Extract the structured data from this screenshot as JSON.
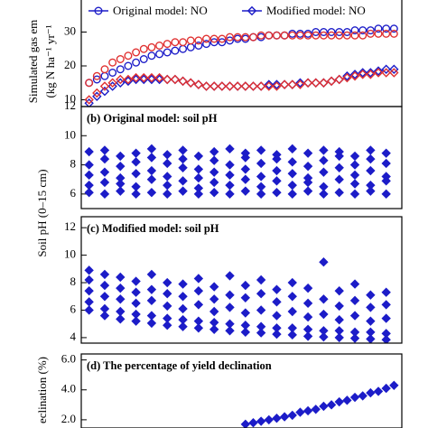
{
  "chart_data": [
    {
      "type": "scatter",
      "ylabel": [
        "Simulated gas em",
        "(kg N ha⁻¹ yr⁻¹"
      ],
      "ylim": [
        8,
        40
      ],
      "yticks": [
        10,
        20,
        30
      ],
      "series": [
        {
          "name": "Original model: NO",
          "color": "#1c1cc8",
          "marker": "circle",
          "filled": false,
          "x": [
            1,
            2,
            3,
            4,
            5,
            6,
            7,
            8,
            9,
            10,
            11,
            12,
            13,
            14,
            15,
            16,
            17,
            18,
            19,
            20,
            21,
            22,
            23,
            24,
            25,
            26,
            27,
            28,
            29,
            30,
            31,
            32,
            33,
            34,
            35,
            36,
            37,
            38,
            39,
            40
          ],
          "values": [
            15,
            16,
            17,
            18,
            19,
            20,
            21,
            22,
            23,
            23.5,
            24,
            24.5,
            25,
            25.5,
            26,
            26.5,
            27,
            27,
            27.5,
            28,
            28,
            28.5,
            28.5,
            29,
            29,
            29,
            29.5,
            29.5,
            29.5,
            30,
            30,
            30,
            30,
            30,
            30.5,
            30.5,
            30.5,
            31,
            31,
            31
          ]
        },
        {
          "color": "#e03030",
          "marker": "circle",
          "filled": false,
          "x": [
            1,
            2,
            3,
            4,
            5,
            6,
            7,
            8,
            9,
            10,
            11,
            12,
            13,
            14,
            15,
            16,
            17,
            18,
            19,
            20,
            21,
            22,
            23,
            24,
            25,
            26,
            27,
            28,
            29,
            30,
            31,
            32,
            33,
            34,
            35,
            36,
            37,
            38,
            39,
            40
          ],
          "values": [
            15,
            17,
            19,
            21,
            22,
            23,
            24,
            25,
            25.5,
            26,
            26.5,
            27,
            27,
            27.5,
            27.5,
            28,
            28,
            28,
            28.5,
            28.5,
            28.5,
            28.5,
            29,
            29,
            29,
            29,
            29,
            29,
            29,
            29,
            29,
            29,
            29,
            29,
            29,
            29,
            29.5,
            29.5,
            29.5,
            29.5
          ]
        },
        {
          "name": "Modified model: NO",
          "color": "#1c1cc8",
          "marker": "diamond",
          "filled": false,
          "x": [
            1,
            2,
            3,
            4,
            5,
            6,
            7,
            8,
            9,
            10,
            11,
            12,
            13,
            14,
            15,
            16,
            17,
            18,
            19,
            20,
            21,
            22,
            23,
            24,
            25,
            26,
            27,
            28,
            29,
            30,
            31,
            32,
            33,
            34,
            35,
            36,
            37,
            38,
            39,
            40
          ],
          "values": [
            9,
            11,
            12.5,
            14,
            15,
            15.5,
            16,
            16,
            16,
            16,
            16,
            16,
            15.5,
            15,
            14.5,
            14,
            14,
            14,
            14,
            14,
            14,
            14,
            14,
            14.5,
            14.5,
            14.5,
            14.5,
            15,
            15,
            15,
            15,
            15.5,
            16,
            17,
            17.5,
            18,
            18,
            18.5,
            19,
            19
          ]
        },
        {
          "color": "#e03030",
          "marker": "diamond",
          "filled": false,
          "x": [
            1,
            2,
            3,
            4,
            5,
            6,
            7,
            8,
            9,
            10,
            11,
            12,
            13,
            14,
            15,
            16,
            17,
            18,
            19,
            20,
            21,
            22,
            23,
            24,
            25,
            26,
            27,
            28,
            29,
            30,
            31,
            32,
            33,
            34,
            35,
            36,
            37,
            38,
            39,
            40
          ],
          "values": [
            10,
            12,
            14,
            15,
            16,
            16,
            16.5,
            16.5,
            16.5,
            16.5,
            16,
            16,
            15.5,
            15,
            14.5,
            14,
            14,
            14,
            14,
            14,
            14,
            14,
            14,
            14,
            14,
            14.5,
            14.5,
            14.5,
            15,
            15,
            15,
            15.5,
            16,
            16.5,
            17,
            17.5,
            17.5,
            18,
            18,
            18
          ]
        }
      ]
    },
    {
      "type": "scatter",
      "title": "(b) Original model: soil pH",
      "ylabel": [
        "Soil pH (0–15 cm)"
      ],
      "ylim": [
        5,
        12
      ],
      "yticks": [
        6,
        8,
        10,
        12
      ],
      "series": [
        {
          "color": "#1c1cc8",
          "marker": "diamond",
          "filled": true,
          "x": [
            1,
            1,
            1,
            1,
            1,
            3,
            3,
            3,
            3,
            3,
            5,
            5,
            5,
            5,
            5,
            7,
            7,
            7,
            7,
            7,
            9,
            9,
            9,
            9,
            9,
            11,
            11,
            11,
            11,
            11,
            13,
            13,
            13,
            13,
            13,
            15,
            15,
            15,
            15,
            15,
            17,
            17,
            17,
            17,
            17,
            19,
            19,
            19,
            19,
            19,
            21,
            21,
            21,
            21,
            21,
            23,
            23,
            23,
            23,
            23,
            25,
            25,
            25,
            25,
            25,
            27,
            27,
            27,
            27,
            27,
            29,
            29,
            29,
            29,
            29,
            31,
            31,
            31,
            31,
            31,
            33,
            33,
            33,
            33,
            33,
            35,
            35,
            35,
            35,
            35,
            37,
            37,
            37,
            37,
            37,
            39,
            39,
            39,
            39,
            39
          ],
          "values": [
            6.1,
            6.6,
            7.3,
            8.0,
            8.9,
            6.0,
            6.8,
            7.5,
            8.4,
            9.0,
            6.2,
            6.7,
            7.1,
            7.9,
            8.6,
            6.0,
            6.5,
            7.4,
            8.2,
            8.8,
            6.1,
            7.0,
            7.6,
            8.5,
            9.1,
            6.0,
            6.6,
            7.2,
            8.1,
            8.7,
            6.2,
            6.9,
            7.8,
            8.4,
            9.0,
            6.0,
            6.4,
            7.1,
            7.7,
            8.6,
            6.1,
            6.8,
            7.5,
            8.3,
            8.9,
            6.0,
            6.6,
            7.3,
            8.0,
            9.1,
            6.2,
            7.0,
            7.7,
            8.5,
            8.8,
            6.0,
            6.5,
            7.2,
            8.1,
            9.0,
            6.1,
            6.9,
            7.6,
            8.4,
            8.7,
            6.0,
            6.6,
            7.4,
            8.2,
            9.1,
            6.2,
            6.8,
            7.1,
            7.9,
            8.8,
            6.0,
            6.5,
            7.5,
            8.3,
            9.0,
            6.1,
            7.0,
            7.8,
            8.6,
            8.9,
            6.0,
            6.7,
            7.3,
            8.0,
            8.6,
            6.2,
            6.6,
            7.6,
            8.4,
            9.0,
            6.0,
            6.9,
            7.2,
            8.1,
            8.8
          ]
        }
      ]
    },
    {
      "type": "scatter",
      "title": "(c) Modified model: soil pH",
      "ylim": [
        3.6,
        12.8
      ],
      "yticks": [
        4,
        6,
        8,
        10,
        12
      ],
      "series": [
        {
          "color": "#1c1cc8",
          "marker": "diamond",
          "filled": true,
          "x": [
            1,
            1,
            1,
            1,
            1,
            3,
            3,
            3,
            3,
            3,
            5,
            5,
            5,
            5,
            5,
            7,
            7,
            7,
            7,
            7,
            9,
            9,
            9,
            9,
            9,
            11,
            11,
            11,
            11,
            11,
            13,
            13,
            13,
            13,
            13,
            15,
            15,
            15,
            15,
            15,
            17,
            17,
            17,
            17,
            17,
            19,
            19,
            19,
            19,
            19,
            21,
            21,
            21,
            21,
            21,
            23,
            23,
            23,
            23,
            23,
            25,
            25,
            25,
            25,
            25,
            27,
            27,
            27,
            27,
            27,
            29,
            29,
            29,
            29,
            29,
            31,
            31,
            31,
            31,
            31,
            33,
            33,
            33,
            33,
            33,
            35,
            35,
            35,
            35,
            35,
            37,
            37,
            37,
            37,
            37,
            39,
            39,
            39,
            39,
            39
          ],
          "values": [
            6.0,
            6.6,
            7.4,
            8.2,
            8.9,
            5.6,
            6.1,
            7.0,
            7.8,
            8.6,
            5.35,
            5.9,
            6.8,
            7.6,
            8.4,
            5.2,
            5.7,
            6.5,
            7.3,
            8.1,
            5.05,
            5.6,
            6.7,
            7.5,
            8.6,
            4.9,
            5.4,
            6.3,
            7.2,
            8.0,
            4.8,
            5.3,
            6.1,
            7.0,
            7.9,
            4.7,
            5.2,
            6.4,
            7.4,
            8.3,
            4.6,
            5.1,
            5.9,
            6.8,
            7.7,
            4.5,
            5.0,
            6.2,
            7.1,
            8.5,
            4.4,
            4.9,
            5.8,
            6.9,
            7.8,
            4.35,
            4.8,
            6.0,
            7.2,
            8.2,
            4.25,
            4.7,
            5.6,
            6.6,
            7.5,
            4.2,
            4.7,
            5.9,
            7.0,
            8.0,
            4.1,
            4.6,
            5.5,
            6.5,
            7.6,
            4.05,
            4.5,
            5.7,
            6.8,
            9.5,
            4.0,
            4.5,
            5.3,
            6.3,
            7.4,
            3.95,
            4.4,
            5.6,
            6.7,
            7.9,
            3.9,
            4.4,
            5.2,
            6.2,
            7.1,
            3.85,
            4.3,
            5.4,
            6.4,
            7.3
          ]
        }
      ]
    },
    {
      "type": "scatter",
      "title": "(d) The percentage of yield declination",
      "ylabel": [
        "eclination (%)"
      ],
      "ylim": [
        1.45,
        6.4
      ],
      "yticks": [
        {
          "value": 2,
          "label": "2.0"
        },
        {
          "value": 4,
          "label": "4.0"
        },
        {
          "value": 6,
          "label": "6.0"
        }
      ],
      "series": [
        {
          "color": "#1c1cc8",
          "marker": "diamond",
          "filled": true,
          "x": [
            21,
            22,
            23,
            24,
            25,
            26,
            27,
            28,
            29,
            30,
            31,
            32,
            33,
            34,
            35,
            36,
            37,
            38,
            39,
            40
          ],
          "values": [
            1.7,
            1.8,
            1.9,
            2.0,
            2.1,
            2.2,
            2.3,
            2.5,
            2.6,
            2.7,
            2.9,
            3.0,
            3.2,
            3.3,
            3.5,
            3.6,
            3.8,
            3.9,
            4.1,
            4.3
          ]
        }
      ]
    }
  ]
}
